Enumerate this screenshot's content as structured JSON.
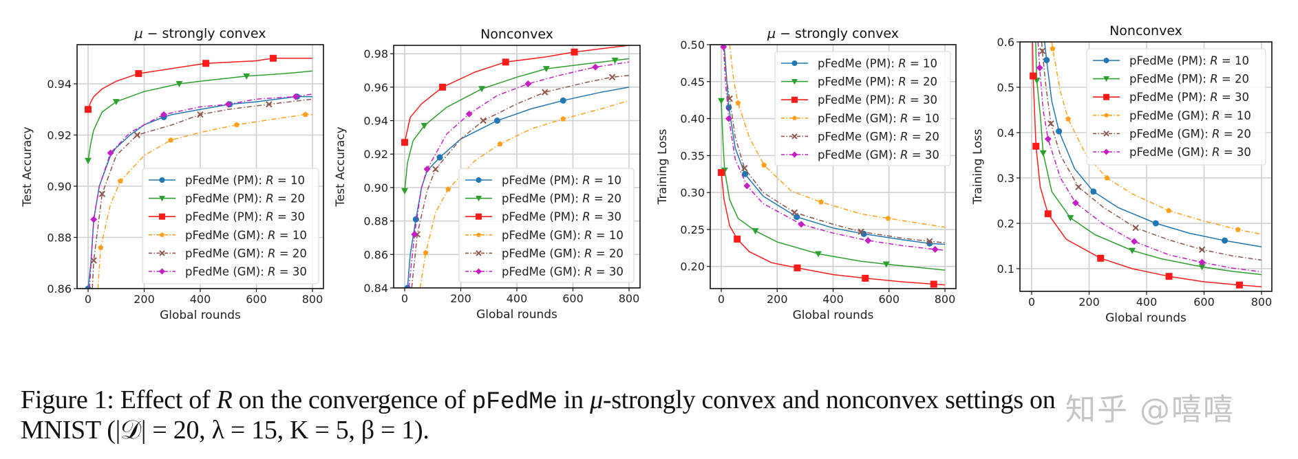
{
  "figure": {
    "caption_line1": {
      "prefix": "Figure 1: Effect of ",
      "var_R": "R",
      "mid": " on the convergence of ",
      "code": "pFedMe",
      "in": " in ",
      "mu": "μ",
      "rest": "-strongly convex and nonconvex settings on"
    },
    "caption_line2": "MNIST (|𝒟| = 20, λ = 15, K = 5, β = 1).",
    "watermark": "知乎 @嘻嘻"
  },
  "legend_entries": [
    {
      "label": "pFedMe (PM): ",
      "R": "R",
      "eq": " = 10"
    },
    {
      "label": "pFedMe (PM): ",
      "R": "R",
      "eq": " = 20"
    },
    {
      "label": "pFedMe (PM): ",
      "R": "R",
      "eq": " = 30"
    },
    {
      "label": "pFedMe (GM): ",
      "R": "R",
      "eq": " = 10"
    },
    {
      "label": "pFedMe (GM): ",
      "R": "R",
      "eq": " = 20"
    },
    {
      "label": "pFedMe (GM): ",
      "R": "R",
      "eq": " = 30"
    }
  ],
  "series_style": [
    {
      "color": "#1f77b4",
      "dash": "solid",
      "marker": "circle"
    },
    {
      "color": "#2ca02c",
      "dash": "solid",
      "marker": "triangle-down"
    },
    {
      "color": "#ff1a1a",
      "dash": "solid",
      "marker": "square"
    },
    {
      "color": "#ff9f1c",
      "dash": "dashdot",
      "marker": "pentagon"
    },
    {
      "color": "#8c564b",
      "dash": "dashdot",
      "marker": "x"
    },
    {
      "color": "#c41ec4",
      "dash": "dashdot",
      "marker": "diamond"
    }
  ],
  "chart_data": [
    {
      "type": "line",
      "title_mu": "μ",
      "title": " − strongly convex",
      "xlabel": "Global rounds",
      "ylabel": "Test Accuracy",
      "xlim": [
        -40,
        840
      ],
      "ylim": [
        0.86,
        0.9553
      ],
      "xticks": [
        "0",
        "200",
        "400",
        "600",
        "800"
      ],
      "xtick_values": [
        0,
        200,
        400,
        600,
        800
      ],
      "yticks": [
        "0.86",
        "0.88",
        "0.90",
        "0.92",
        "0.94"
      ],
      "ytick_values": [
        0.86,
        0.88,
        0.9,
        0.92,
        0.94
      ],
      "grid": true,
      "legend_position": "lower-right",
      "series": [
        {
          "name": "pFedMe (PM): R = 10",
          "x": [
            0,
            10,
            20,
            40,
            60,
            80,
            100,
            150,
            200,
            270,
            300,
            400,
            505,
            600,
            745,
            800
          ],
          "y": [
            0.86,
            0.87,
            0.887,
            0.9,
            0.906,
            0.912,
            0.915,
            0.92,
            0.924,
            0.927,
            0.928,
            0.93,
            0.932,
            0.933,
            0.935,
            0.935
          ],
          "markers_at": [
            0,
            270,
            505,
            745
          ]
        },
        {
          "name": "pFedMe (PM): R = 20",
          "x": [
            0,
            10,
            20,
            50,
            100,
            200,
            325,
            400,
            565,
            700,
            800
          ],
          "y": [
            0.91,
            0.917,
            0.922,
            0.929,
            0.933,
            0.937,
            0.94,
            0.941,
            0.943,
            0.944,
            0.945
          ],
          "markers_at": [
            0,
            100,
            325,
            565
          ]
        },
        {
          "name": "pFedMe (PM): R = 30",
          "x": [
            0,
            10,
            20,
            50,
            100,
            180,
            300,
            420,
            600,
            660,
            800
          ],
          "y": [
            0.93,
            0.933,
            0.935,
            0.938,
            0.941,
            0.944,
            0.946,
            0.948,
            0.949,
            0.95,
            0.95
          ],
          "markers_at": [
            0,
            180,
            420,
            660
          ]
        },
        {
          "name": "pFedMe (GM): R = 10",
          "x": [
            35,
            45,
            80,
            115,
            200,
            295,
            400,
            530,
            650,
            775,
            800
          ],
          "y": [
            0.86,
            0.876,
            0.893,
            0.902,
            0.912,
            0.918,
            0.921,
            0.924,
            0.926,
            0.928,
            0.928
          ],
          "markers_at": [
            45,
            115,
            295,
            530,
            775
          ]
        },
        {
          "name": "pFedMe (GM): R = 20",
          "x": [
            15,
            20,
            50,
            100,
            175,
            300,
            400,
            500,
            645,
            800
          ],
          "y": [
            0.86,
            0.871,
            0.897,
            0.912,
            0.92,
            0.924,
            0.928,
            0.93,
            0.932,
            0.934
          ],
          "markers_at": [
            20,
            50,
            175,
            400,
            645
          ]
        },
        {
          "name": "pFedMe (GM): R = 30",
          "x": [
            5,
            20,
            40,
            80,
            150,
            200,
            270,
            400,
            500,
            600,
            740,
            800
          ],
          "y": [
            0.86,
            0.887,
            0.9,
            0.913,
            0.921,
            0.924,
            0.928,
            0.931,
            0.932,
            0.934,
            0.935,
            0.936
          ],
          "markers_at": [
            20,
            80,
            270,
            500,
            740
          ]
        }
      ]
    },
    {
      "type": "line",
      "title": "Nonconvex",
      "xlabel": "Global rounds",
      "ylabel": "Test Accuracy",
      "xlim": [
        -40,
        840
      ],
      "ylim": [
        0.84,
        0.985
      ],
      "xticks": [
        "0",
        "200",
        "400",
        "600",
        "800"
      ],
      "xtick_values": [
        0,
        200,
        400,
        600,
        800
      ],
      "yticks": [
        "0.84",
        "0.86",
        "0.88",
        "0.90",
        "0.92",
        "0.94",
        "0.96",
        "0.98"
      ],
      "ytick_values": [
        0.84,
        0.86,
        0.88,
        0.9,
        0.92,
        0.94,
        0.96,
        0.98
      ],
      "grid": true,
      "legend_position": "lower-right",
      "series": [
        {
          "name": "pFedMe (PM): R = 10",
          "x": [
            10,
            20,
            40,
            60,
            80,
            125,
            200,
            330,
            450,
            565,
            700,
            800
          ],
          "y": [
            0.84,
            0.86,
            0.881,
            0.9,
            0.91,
            0.918,
            0.929,
            0.94,
            0.947,
            0.952,
            0.957,
            0.96
          ],
          "markers_at": [
            10,
            40,
            125,
            330,
            565
          ]
        },
        {
          "name": "pFedMe (PM): R = 20",
          "x": [
            0,
            10,
            30,
            70,
            150,
            275,
            400,
            505,
            650,
            750,
            800
          ],
          "y": [
            0.898,
            0.915,
            0.928,
            0.937,
            0.948,
            0.959,
            0.966,
            0.971,
            0.974,
            0.976,
            0.977
          ],
          "markers_at": [
            0,
            70,
            275,
            505,
            750
          ]
        },
        {
          "name": "pFedMe (PM): R = 30",
          "x": [
            0,
            20,
            60,
            135,
            250,
            360,
            500,
            605,
            800
          ],
          "y": [
            0.927,
            0.942,
            0.95,
            0.96,
            0.969,
            0.975,
            0.978,
            0.981,
            0.985
          ],
          "markers_at": [
            0,
            135,
            360,
            605
          ]
        },
        {
          "name": "pFedMe (GM): R = 10",
          "x": [
            55,
            75,
            110,
            155,
            250,
            340,
            450,
            565,
            700,
            800
          ],
          "y": [
            0.84,
            0.861,
            0.885,
            0.899,
            0.916,
            0.926,
            0.935,
            0.941,
            0.947,
            0.952
          ],
          "markers_at": [
            75,
            155,
            340,
            565
          ]
        },
        {
          "name": "pFedMe (GM): R = 20",
          "x": [
            25,
            45,
            80,
            110,
            160,
            200,
            280,
            400,
            500,
            650,
            740,
            800
          ],
          "y": [
            0.84,
            0.872,
            0.898,
            0.911,
            0.921,
            0.929,
            0.94,
            0.95,
            0.957,
            0.963,
            0.966,
            0.967
          ],
          "markers_at": [
            45,
            110,
            280,
            500,
            740
          ]
        },
        {
          "name": "pFedMe (GM): R = 30",
          "x": [
            15,
            35,
            60,
            80,
            150,
            230,
            330,
            440,
            550,
            680,
            800
          ],
          "y": [
            0.84,
            0.872,
            0.9,
            0.911,
            0.932,
            0.944,
            0.955,
            0.962,
            0.967,
            0.972,
            0.975
          ],
          "markers_at": [
            35,
            80,
            230,
            440,
            680
          ]
        }
      ]
    },
    {
      "type": "line",
      "title_mu": "μ",
      "title": " − strongly convex",
      "xlabel": "Global rounds",
      "ylabel": "Training Loss",
      "xlim": [
        -40,
        840
      ],
      "ylim": [
        0.17,
        0.5
      ],
      "xticks": [
        "0",
        "200",
        "400",
        "600",
        "800"
      ],
      "xtick_values": [
        0,
        200,
        400,
        600,
        800
      ],
      "yticks": [
        "0.20",
        "0.25",
        "0.30",
        "0.35",
        "0.40",
        "0.45",
        "0.50"
      ],
      "ytick_values": [
        0.2,
        0.25,
        0.3,
        0.35,
        0.4,
        0.45,
        0.5
      ],
      "grid": true,
      "legend_position": "upper-right",
      "series": [
        {
          "name": "pFedMe (PM): R = 10",
          "x": [
            10,
            20,
            27,
            50,
            85,
            150,
            270,
            400,
            510,
            650,
            745,
            800
          ],
          "y": [
            0.5,
            0.45,
            0.415,
            0.36,
            0.325,
            0.295,
            0.267,
            0.252,
            0.244,
            0.236,
            0.231,
            0.23
          ],
          "markers_at": [
            27,
            85,
            270,
            510,
            745
          ]
        },
        {
          "name": "pFedMe (PM): R = 20",
          "x": [
            0,
            6,
            12,
            30,
            60,
            122,
            200,
            347,
            500,
            590,
            800
          ],
          "y": [
            0.424,
            0.37,
            0.33,
            0.29,
            0.265,
            0.248,
            0.233,
            0.217,
            0.207,
            0.203,
            0.195
          ],
          "markers_at": [
            0,
            12,
            122,
            347,
            590
          ]
        },
        {
          "name": "pFedMe (PM): R = 30",
          "x": [
            0,
            10,
            30,
            57,
            100,
            180,
            272,
            400,
            515,
            650,
            760,
            800
          ],
          "y": [
            0.327,
            0.29,
            0.255,
            0.237,
            0.22,
            0.205,
            0.198,
            0.189,
            0.184,
            0.179,
            0.176,
            0.175
          ],
          "markers_at": [
            0,
            57,
            272,
            515,
            760
          ]
        },
        {
          "name": "pFedMe (GM): R = 10",
          "x": [
            30,
            45,
            60,
            100,
            153,
            250,
            357,
            500,
            597,
            700,
            800
          ],
          "y": [
            0.5,
            0.45,
            0.421,
            0.375,
            0.337,
            0.302,
            0.287,
            0.271,
            0.265,
            0.259,
            0.253
          ],
          "markers_at": [
            60,
            153,
            357,
            597
          ]
        },
        {
          "name": "pFedMe (GM): R = 20",
          "x": [
            10,
            20,
            30,
            50,
            83,
            150,
            262,
            400,
            500,
            650,
            745,
            800
          ],
          "y": [
            0.5,
            0.45,
            0.427,
            0.375,
            0.333,
            0.3,
            0.273,
            0.257,
            0.247,
            0.238,
            0.234,
            0.232
          ],
          "markers_at": [
            30,
            83,
            262,
            500,
            745
          ]
        },
        {
          "name": "pFedMe (GM): R = 30",
          "x": [
            8,
            15,
            27,
            50,
            92,
            150,
            286,
            400,
            525,
            650,
            765,
            800
          ],
          "y": [
            0.497,
            0.45,
            0.4,
            0.345,
            0.309,
            0.285,
            0.257,
            0.245,
            0.235,
            0.228,
            0.223,
            0.222
          ],
          "markers_at": [
            8,
            27,
            92,
            286,
            525,
            765
          ]
        }
      ]
    },
    {
      "type": "line",
      "title": "Nonconvex",
      "xlabel": "Global rounds",
      "ylabel": "Training Loss",
      "xlim": [
        -40,
        840
      ],
      "ylim": [
        0.05,
        0.6
      ],
      "xticks": [
        "0",
        "200",
        "400",
        "600",
        "800"
      ],
      "xtick_values": [
        0,
        200,
        400,
        600,
        800
      ],
      "yticks": [
        "0.1",
        "0.2",
        "0.3",
        "0.4",
        "0.5",
        "0.6"
      ],
      "ytick_values": [
        0.1,
        0.2,
        0.3,
        0.4,
        0.5,
        0.6
      ],
      "grid": true,
      "legend_position": "upper-right",
      "series": [
        {
          "name": "pFedMe (PM): R = 10",
          "x": [
            45,
            52,
            70,
            95,
            150,
            215,
            300,
            432,
            550,
            672,
            800
          ],
          "y": [
            0.6,
            0.56,
            0.47,
            0.403,
            0.32,
            0.27,
            0.235,
            0.2,
            0.178,
            0.162,
            0.148
          ],
          "markers_at": [
            52,
            95,
            215,
            432,
            672
          ]
        },
        {
          "name": "pFedMe (PM): R = 20",
          "x": [
            14,
            18,
            30,
            40,
            70,
            135,
            220,
            350,
            450,
            593,
            700,
            800
          ],
          "y": [
            0.6,
            0.515,
            0.44,
            0.355,
            0.27,
            0.212,
            0.175,
            0.14,
            0.122,
            0.104,
            0.094,
            0.087
          ],
          "markers_at": [
            18,
            40,
            135,
            350,
            593
          ]
        },
        {
          "name": "pFedMe (PM): R = 30",
          "x": [
            3,
            5,
            15,
            30,
            57,
            120,
            240,
            350,
            478,
            600,
            723,
            800
          ],
          "y": [
            0.6,
            0.525,
            0.37,
            0.28,
            0.221,
            0.165,
            0.123,
            0.1,
            0.083,
            0.071,
            0.064,
            0.06
          ],
          "markers_at": [
            5,
            15,
            57,
            240,
            478,
            723
          ]
        },
        {
          "name": "pFedMe (GM): R = 10",
          "x": [
            70,
            73,
            100,
            127,
            190,
            262,
            350,
            477,
            600,
            718,
            800
          ],
          "y": [
            0.6,
            0.585,
            0.49,
            0.43,
            0.35,
            0.3,
            0.265,
            0.228,
            0.205,
            0.186,
            0.176
          ],
          "markers_at": [
            73,
            127,
            262,
            477,
            718
          ]
        },
        {
          "name": "pFedMe (GM): R = 20",
          "x": [
            35,
            37,
            50,
            67,
            100,
            163,
            250,
            362,
            480,
            593,
            700,
            800
          ],
          "y": [
            0.6,
            0.58,
            0.5,
            0.42,
            0.35,
            0.28,
            0.235,
            0.19,
            0.163,
            0.142,
            0.128,
            0.119
          ],
          "markers_at": [
            37,
            67,
            163,
            362,
            593
          ]
        },
        {
          "name": "pFedMe (GM): R = 30",
          "x": [
            22,
            28,
            40,
            57,
            100,
            153,
            250,
            357,
            480,
            593,
            700,
            800
          ],
          "y": [
            0.6,
            0.543,
            0.45,
            0.386,
            0.3,
            0.245,
            0.198,
            0.16,
            0.13,
            0.114,
            0.101,
            0.093
          ],
          "markers_at": [
            28,
            57,
            153,
            357,
            593
          ]
        }
      ]
    }
  ]
}
